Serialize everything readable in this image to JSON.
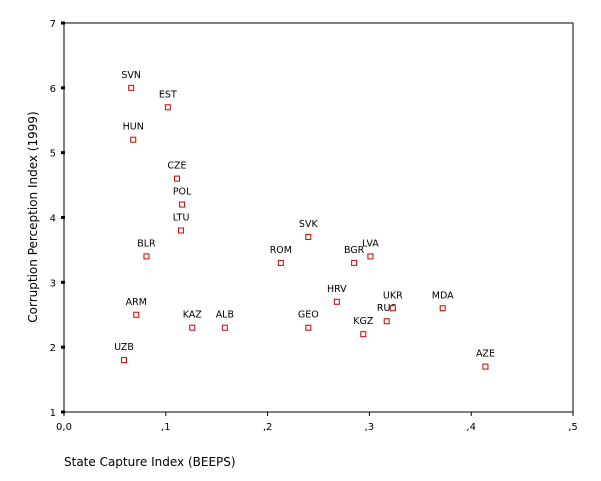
{
  "chart_data": {
    "type": "scatter",
    "title": "",
    "xlabel": "State Capture Index (BEEPS)",
    "ylabel": "Corruption Perception Index (1999)",
    "xlim": [
      0,
      0.5
    ],
    "ylim": [
      1,
      7
    ],
    "xticks": [
      0,
      0.1,
      0.2,
      0.3,
      0.4,
      0.5
    ],
    "xtick_labels": [
      "0,0",
      ",1",
      ",2",
      ",3",
      ",4",
      ",5"
    ],
    "yticks": [
      1,
      2,
      3,
      4,
      5,
      6,
      7
    ],
    "ytick_labels": [
      "1",
      "2",
      "3",
      "4",
      "5",
      "6",
      "7"
    ],
    "grid": false,
    "marker_color": "#cc0000",
    "points": [
      {
        "label": "SVN",
        "x": 0.066,
        "y": 6.0
      },
      {
        "label": "EST",
        "x": 0.102,
        "y": 5.7
      },
      {
        "label": "HUN",
        "x": 0.068,
        "y": 5.2
      },
      {
        "label": "CZE",
        "x": 0.111,
        "y": 4.6
      },
      {
        "label": "POL",
        "x": 0.116,
        "y": 4.2
      },
      {
        "label": "LTU",
        "x": 0.115,
        "y": 3.8
      },
      {
        "label": "BLR",
        "x": 0.081,
        "y": 3.4
      },
      {
        "label": "SVK",
        "x": 0.24,
        "y": 3.7
      },
      {
        "label": "ROM",
        "x": 0.213,
        "y": 3.3
      },
      {
        "label": "BGR",
        "x": 0.285,
        "y": 3.3
      },
      {
        "label": "LVA",
        "x": 0.301,
        "y": 3.4
      },
      {
        "label": "ARM",
        "x": 0.071,
        "y": 2.5
      },
      {
        "label": "KAZ",
        "x": 0.126,
        "y": 2.3
      },
      {
        "label": "ALB",
        "x": 0.158,
        "y": 2.3
      },
      {
        "label": "HRV",
        "x": 0.268,
        "y": 2.7
      },
      {
        "label": "GEO",
        "x": 0.24,
        "y": 2.3
      },
      {
        "label": "KGZ",
        "x": 0.294,
        "y": 2.2
      },
      {
        "label": "RUS",
        "x": 0.317,
        "y": 2.4
      },
      {
        "label": "UKR",
        "x": 0.323,
        "y": 2.6
      },
      {
        "label": "MDA",
        "x": 0.372,
        "y": 2.6
      },
      {
        "label": "UZB",
        "x": 0.059,
        "y": 1.8
      },
      {
        "label": "AZE",
        "x": 0.414,
        "y": 1.7
      }
    ]
  }
}
